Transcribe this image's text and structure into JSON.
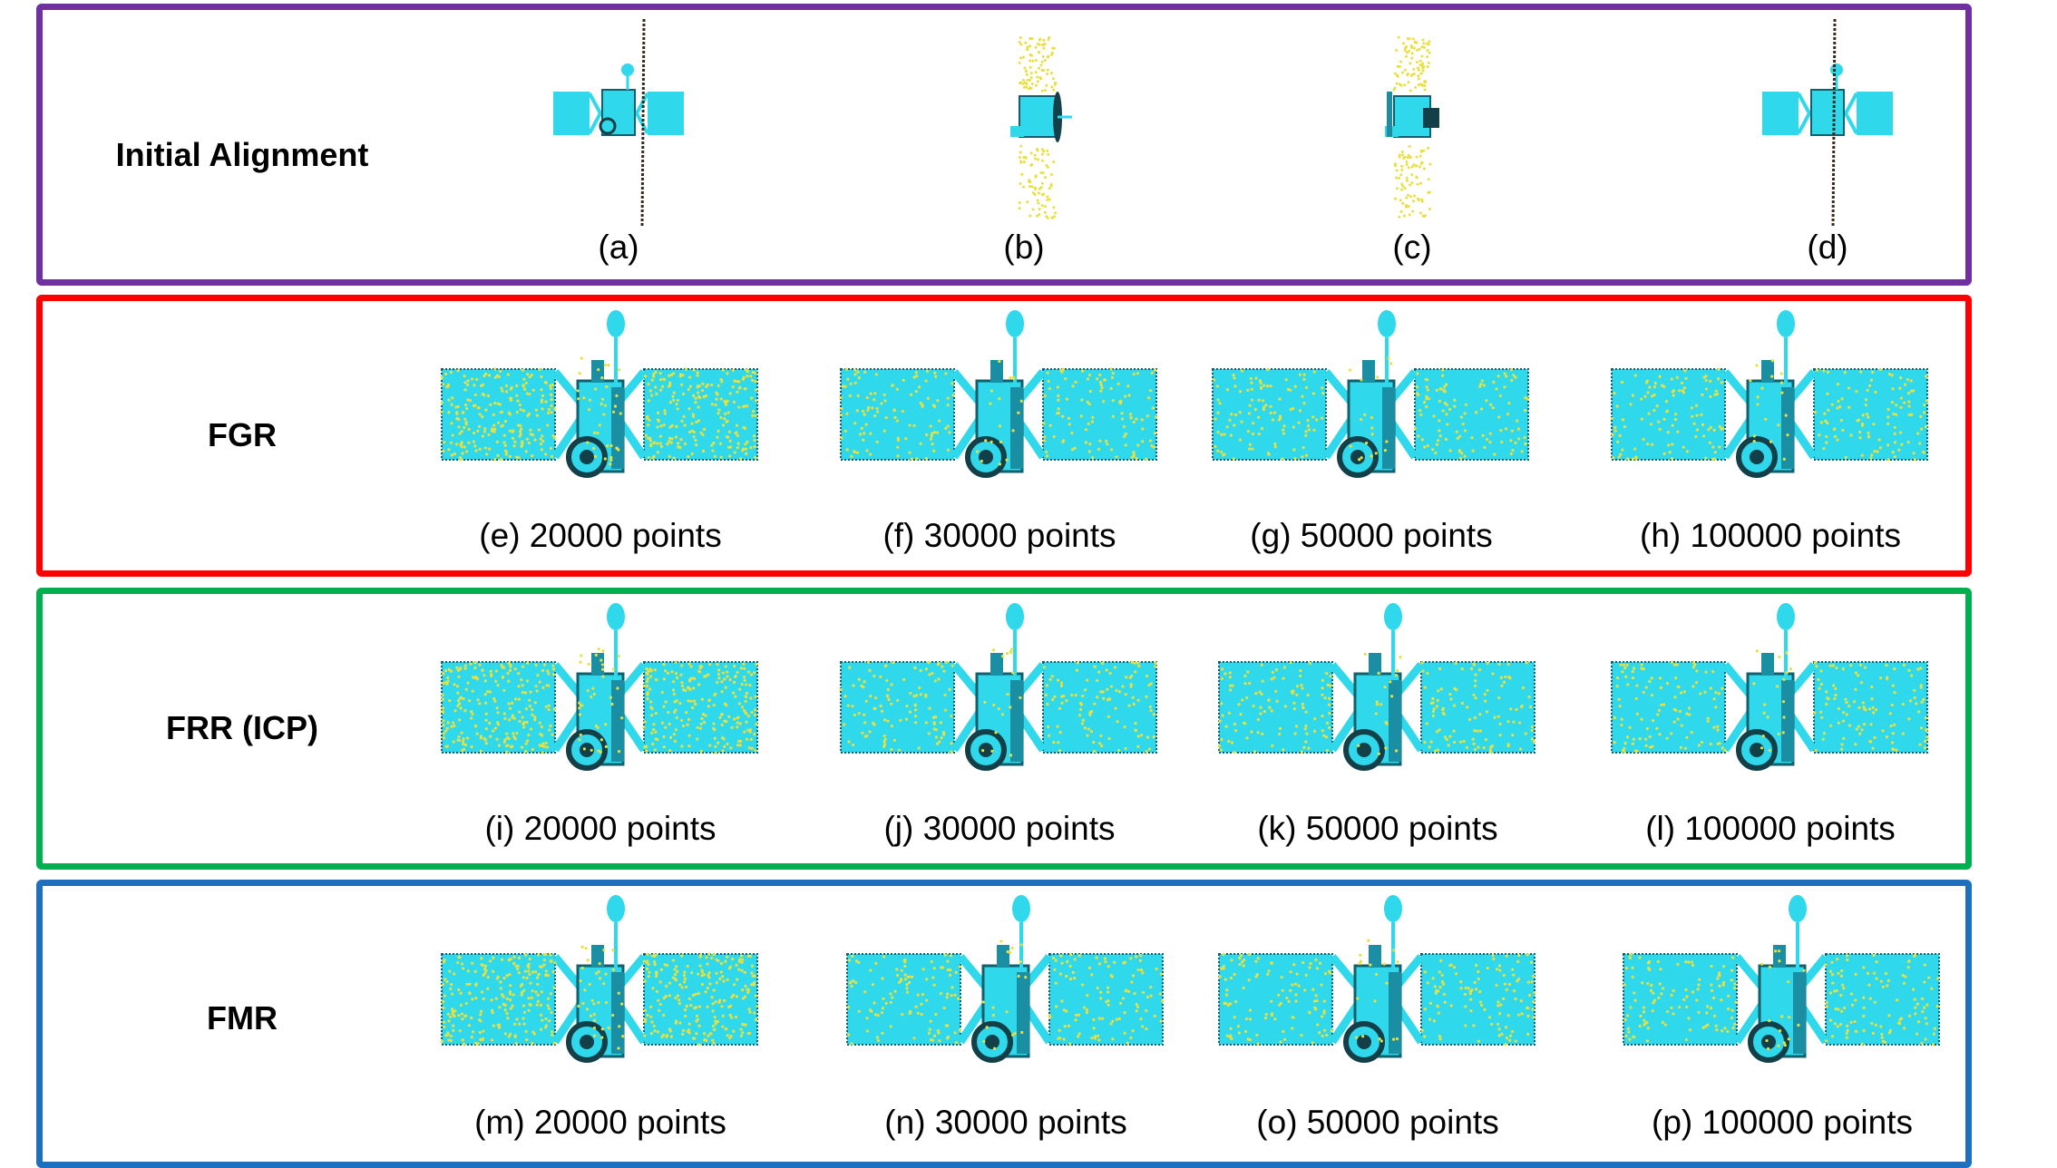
{
  "figure": {
    "rows": [
      {
        "label": "Initial Alignment",
        "border_color": "#7030a0",
        "view": "initial",
        "captions": [
          "(a)",
          "(b)",
          "(c)",
          "(d)"
        ]
      },
      {
        "label": "FGR",
        "border_color": "#ff0000",
        "view": "aligned",
        "captions": [
          "(e) 20000 points",
          "(f) 30000 points",
          "(g) 50000 points",
          "(h) 100000 points"
        ]
      },
      {
        "label": "FRR (ICP)",
        "border_color": "#00b050",
        "view": "aligned",
        "captions": [
          "(i) 20000 points",
          "(j) 30000 points",
          "(k) 50000 points",
          "(l) 100000 points"
        ]
      },
      {
        "label": "FMR",
        "border_color": "#1f6fbf",
        "view": "aligned",
        "captions": [
          "(m) 20000 points",
          "(n) 30000 points",
          "(o) 50000 points",
          "(p) 100000 points"
        ]
      }
    ],
    "colors": {
      "satellite_body": "#2fd8ea",
      "satellite_dark": "#10606e",
      "noise_points": "#e8e040",
      "scan_line": "#3a2a1a"
    },
    "icons": [
      "satellite-pointcloud-icon"
    ]
  }
}
